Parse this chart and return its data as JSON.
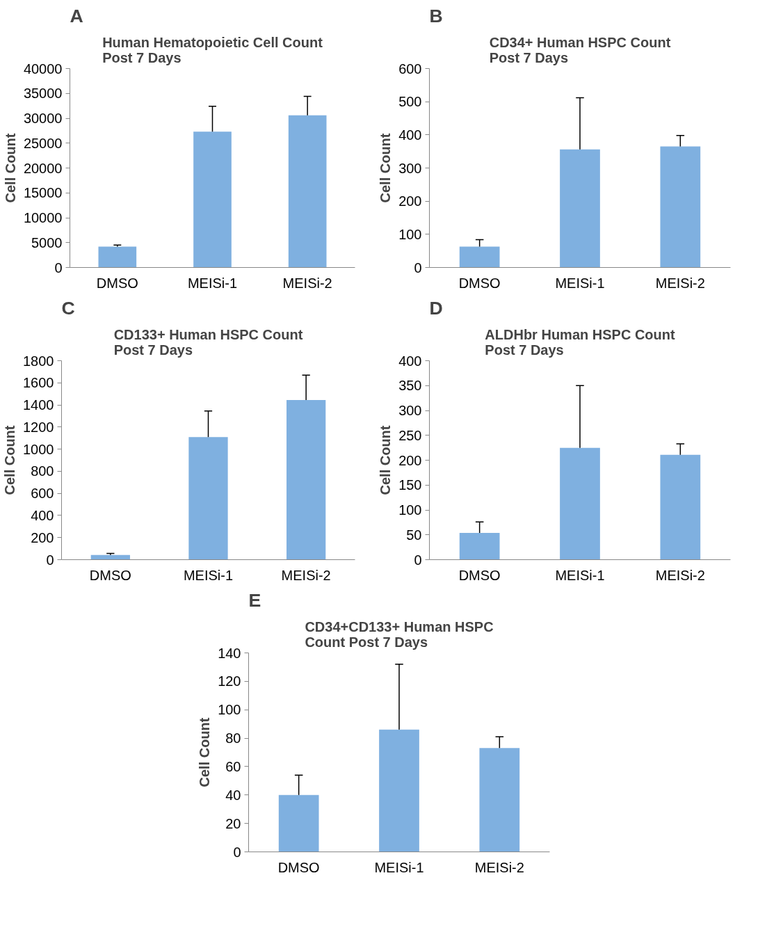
{
  "chart_data": [
    {
      "type": "bar",
      "title": "Human Hematopoietic Cell Count\nPost 7 Days",
      "annotations": [
        "A"
      ],
      "ylabel": "Cell Count",
      "categories": [
        "DMSO",
        "MEISi-1",
        "MEISi-2"
      ],
      "values": [
        4200,
        27300,
        30600
      ],
      "errors": [
        [
          4200,
          4500
        ],
        [
          27300,
          32400
        ],
        [
          30600,
          34400
        ]
      ],
      "color": "#7fb0e0",
      "ylim": [
        0,
        40000
      ],
      "yticks": [
        0,
        5000,
        10000,
        15000,
        20000,
        25000,
        30000,
        35000,
        40000
      ],
      "grid": false
    },
    {
      "type": "bar",
      "title": "CD34+ Human HSPC Count\nPost 7 Days",
      "annotations": [
        "B"
      ],
      "ylabel": "Cell Count",
      "categories": [
        "DMSO",
        "MEISi-1",
        "MEISi-2"
      ],
      "values": [
        63,
        356,
        365
      ],
      "errors": [
        [
          63,
          84
        ],
        [
          356,
          512
        ],
        [
          365,
          398
        ]
      ],
      "color": "#7fb0e0",
      "ylim": [
        0,
        600
      ],
      "yticks": [
        0,
        100,
        200,
        300,
        400,
        500,
        600
      ],
      "grid": false
    },
    {
      "type": "bar",
      "title": "CD133+ Human HSPC Count\nPost 7 Days",
      "annotations": [
        "C"
      ],
      "ylabel": "Cell Count",
      "categories": [
        "DMSO",
        "MEISi-1",
        "MEISi-2"
      ],
      "values": [
        42,
        1110,
        1445
      ],
      "errors": [
        [
          42,
          56
        ],
        [
          1110,
          1345
        ],
        [
          1445,
          1670
        ]
      ],
      "color": "#7fb0e0",
      "ylim": [
        0,
        1800
      ],
      "yticks": [
        0,
        200,
        400,
        600,
        800,
        1000,
        1200,
        1400,
        1600,
        1800
      ],
      "grid": false
    },
    {
      "type": "bar",
      "title": "ALDHbr Human HSPC Count\nPost 7 Days",
      "annotations": [
        "D"
      ],
      "ylabel": "Cell Count",
      "categories": [
        "DMSO",
        "MEISi-1",
        "MEISi-2"
      ],
      "values": [
        54,
        225,
        211
      ],
      "errors": [
        [
          54,
          76
        ],
        [
          225,
          350
        ],
        [
          211,
          233
        ]
      ],
      "color": "#7fb0e0",
      "ylim": [
        0,
        400
      ],
      "yticks": [
        0,
        50,
        100,
        150,
        200,
        250,
        300,
        350,
        400
      ],
      "grid": false
    },
    {
      "type": "bar",
      "title": "CD34+CD133+ Human HSPC\nCount Post 7 Days",
      "annotations": [
        "E"
      ],
      "ylabel": "Cell Count",
      "categories": [
        "DMSO",
        "MEISi-1",
        "MEISi-2"
      ],
      "values": [
        40,
        86,
        73
      ],
      "errors": [
        [
          40,
          54
        ],
        [
          86,
          132
        ],
        [
          73,
          81
        ]
      ],
      "color": "#7fb0e0",
      "ylim": [
        0,
        140
      ],
      "yticks": [
        0,
        20,
        40,
        60,
        80,
        100,
        120,
        140
      ],
      "grid": false
    }
  ]
}
